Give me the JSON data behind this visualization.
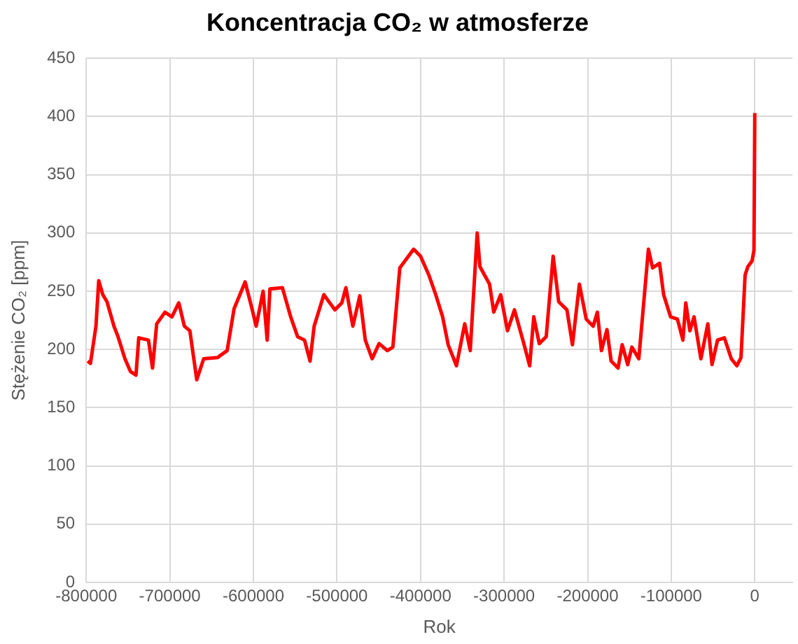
{
  "chart_data": {
    "type": "line",
    "title": "Koncentracja CO₂ w atmosferze",
    "xlabel": "Rok",
    "ylabel": "Stężenie CO₂ [ppm]",
    "x": [
      -798300,
      -795000,
      -788400,
      -785100,
      -780200,
      -775200,
      -766900,
      -762000,
      -753700,
      -747100,
      -740500,
      -737200,
      -725600,
      -720700,
      -715700,
      -705800,
      -697500,
      -689300,
      -682600,
      -676000,
      -667800,
      -659500,
      -643000,
      -631400,
      -623100,
      -609900,
      -601700,
      -596700,
      -588400,
      -583500,
      -580200,
      -565300,
      -555400,
      -547100,
      -538800,
      -532200,
      -527300,
      -515700,
      -502500,
      -494200,
      -489300,
      -481000,
      -472700,
      -466100,
      -457900,
      -449600,
      -439700,
      -433100,
      -424800,
      -408300,
      -400000,
      -390100,
      -381800,
      -373600,
      -366900,
      -357000,
      -347100,
      -340500,
      -332200,
      -328900,
      -317400,
      -312400,
      -304100,
      -295900,
      -287600,
      -276000,
      -269400,
      -264500,
      -257900,
      -249600,
      -241300,
      -234700,
      -224800,
      -218200,
      -209900,
      -201700,
      -193400,
      -188400,
      -183500,
      -176900,
      -171900,
      -163600,
      -158700,
      -152100,
      -147100,
      -138800,
      -133900,
      -127300,
      -122300,
      -114000,
      -109100,
      -100800,
      -92600,
      -86000,
      -82600,
      -77700,
      -72700,
      -64500,
      -56200,
      -51200,
      -44600,
      -36400,
      -28100,
      -21500,
      -16500,
      -11600,
      -8300,
      -3300,
      -1000,
      0
    ],
    "series": [
      {
        "color": "#ff0000",
        "values": [
          190,
          188,
          220,
          259,
          247,
          241,
          220,
          211,
          192,
          181,
          178,
          210,
          208,
          184,
          222,
          232,
          228,
          240,
          220,
          216,
          174,
          192,
          193,
          199,
          235,
          258,
          235,
          220,
          250,
          208,
          252,
          253,
          228,
          211,
          208,
          190,
          220,
          247,
          234,
          240,
          253,
          220,
          246,
          208,
          192,
          205,
          199,
          202,
          270,
          286,
          280,
          264,
          247,
          228,
          204,
          186,
          222,
          199,
          300,
          271,
          256,
          232,
          247,
          216,
          234,
          204,
          186,
          228,
          205,
          211,
          280,
          241,
          234,
          204,
          256,
          226,
          220,
          232,
          199,
          217,
          190,
          184,
          204,
          187,
          202,
          192,
          232,
          286,
          270,
          274,
          247,
          228,
          226,
          208,
          240,
          216,
          228,
          192,
          222,
          187,
          208,
          210,
          192,
          186,
          193,
          264,
          271,
          276,
          285,
          403
        ]
      }
    ],
    "xlim": [
      -800000,
      45000
    ],
    "xticks": [
      -800000,
      -700000,
      -600000,
      -500000,
      -400000,
      -300000,
      -200000,
      -100000,
      0
    ],
    "ylim": [
      0,
      450
    ],
    "yticks": [
      0,
      50,
      100,
      150,
      200,
      250,
      300,
      350,
      400,
      450
    ],
    "grid": true,
    "legend": false,
    "marker": "none",
    "line_style": "solid"
  }
}
